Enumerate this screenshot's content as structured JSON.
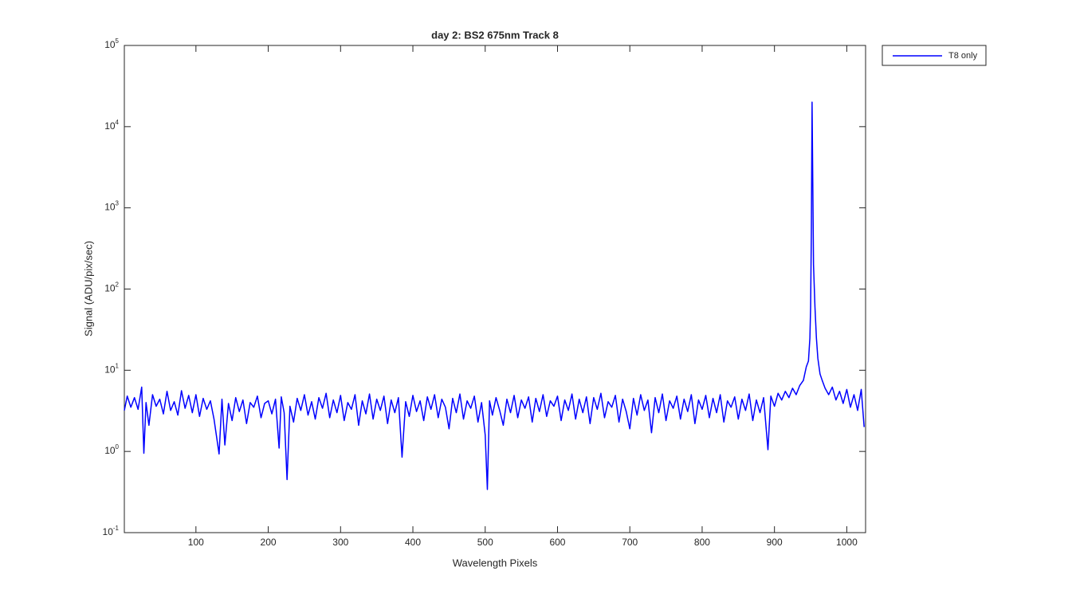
{
  "chart_data": {
    "type": "line",
    "title": "day 2: BS2  675nm  Track 8",
    "xlabel": "Wavelength Pixels",
    "ylabel": "Signal (ADU/pix/sec)",
    "yscale": "log",
    "legend": "outside-top-right",
    "xlim": [
      1,
      1026
    ],
    "ylim": [
      0.1,
      100000
    ],
    "xticks": [
      100,
      200,
      300,
      400,
      500,
      600,
      700,
      800,
      900,
      1000
    ],
    "yticks": [
      {
        "value": 0.1,
        "label": "10",
        "exponent": "-1"
      },
      {
        "value": 1,
        "label": "10",
        "exponent": "0"
      },
      {
        "value": 10,
        "label": "10",
        "exponent": "1"
      },
      {
        "value": 100,
        "label": "10",
        "exponent": "2"
      },
      {
        "value": 1000,
        "label": "10",
        "exponent": "3"
      },
      {
        "value": 10000,
        "label": "10",
        "exponent": "4"
      },
      {
        "value": 100000,
        "label": "10",
        "exponent": "5"
      }
    ],
    "series": [
      {
        "name": "T8 only",
        "color": "#0000ff",
        "x": [
          1,
          5,
          10,
          15,
          20,
          25,
          28,
          31,
          35,
          40,
          45,
          50,
          55,
          60,
          65,
          70,
          75,
          80,
          85,
          90,
          95,
          100,
          105,
          110,
          115,
          120,
          125,
          132,
          136,
          140,
          145,
          150,
          155,
          160,
          165,
          170,
          175,
          180,
          185,
          190,
          195,
          200,
          205,
          210,
          215,
          218,
          222,
          226,
          230,
          235,
          240,
          245,
          250,
          255,
          260,
          265,
          270,
          275,
          280,
          285,
          290,
          295,
          300,
          305,
          310,
          315,
          320,
          325,
          330,
          335,
          340,
          345,
          350,
          355,
          360,
          365,
          370,
          375,
          380,
          385,
          390,
          395,
          400,
          405,
          410,
          415,
          420,
          425,
          430,
          435,
          440,
          445,
          450,
          455,
          460,
          465,
          470,
          475,
          480,
          485,
          490,
          495,
          500,
          503,
          506,
          510,
          515,
          520,
          525,
          530,
          535,
          540,
          545,
          550,
          555,
          560,
          565,
          570,
          575,
          580,
          585,
          590,
          595,
          600,
          605,
          610,
          615,
          620,
          625,
          630,
          635,
          640,
          645,
          650,
          655,
          660,
          665,
          670,
          675,
          680,
          685,
          690,
          695,
          700,
          705,
          710,
          715,
          720,
          725,
          730,
          735,
          740,
          745,
          750,
          755,
          760,
          765,
          770,
          775,
          780,
          785,
          790,
          795,
          800,
          805,
          810,
          815,
          820,
          825,
          830,
          835,
          840,
          845,
          850,
          855,
          860,
          865,
          870,
          875,
          880,
          885,
          891,
          895,
          900,
          905,
          910,
          915,
          920,
          925,
          930,
          935,
          940,
          944,
          947,
          949,
          950,
          951,
          952,
          953,
          954,
          956,
          958,
          960,
          963,
          966,
          970,
          975,
          980,
          985,
          990,
          995,
          1000,
          1005,
          1010,
          1015,
          1020,
          1024
        ],
        "values": [
          3.2,
          4.8,
          3.5,
          4.6,
          3.3,
          6.2,
          0.95,
          4.0,
          2.1,
          5.0,
          3.6,
          4.4,
          2.9,
          5.5,
          3.2,
          4.1,
          2.8,
          5.6,
          3.4,
          4.9,
          3.0,
          5.0,
          2.7,
          4.5,
          3.3,
          4.2,
          2.5,
          0.93,
          4.4,
          1.2,
          3.9,
          2.4,
          4.6,
          3.1,
          4.3,
          2.2,
          4.0,
          3.5,
          4.8,
          2.6,
          3.9,
          4.2,
          2.9,
          4.4,
          1.1,
          4.7,
          3.0,
          0.45,
          3.6,
          2.3,
          4.5,
          3.2,
          5.0,
          2.8,
          4.1,
          2.5,
          4.6,
          3.4,
          5.2,
          2.6,
          4.3,
          3.0,
          4.9,
          2.4,
          4.0,
          3.3,
          5.0,
          2.1,
          4.2,
          2.9,
          5.1,
          2.5,
          4.4,
          3.2,
          4.8,
          2.2,
          4.3,
          3.0,
          4.6,
          0.85,
          4.1,
          2.7,
          4.9,
          3.1,
          4.2,
          2.4,
          4.7,
          3.3,
          5.0,
          2.6,
          4.4,
          3.5,
          1.9,
          4.5,
          3.0,
          5.1,
          2.5,
          4.2,
          3.4,
          4.8,
          2.3,
          4.0,
          1.6,
          0.34,
          4.2,
          2.8,
          4.6,
          3.2,
          2.1,
          4.4,
          3.0,
          4.9,
          2.6,
          4.3,
          3.4,
          4.7,
          2.3,
          4.5,
          3.1,
          5.0,
          2.7,
          4.2,
          3.6,
          4.8,
          2.4,
          4.3,
          3.2,
          5.1,
          2.5,
          4.4,
          3.0,
          4.7,
          2.2,
          4.6,
          3.3,
          5.2,
          2.6,
          4.1,
          3.5,
          4.9,
          2.3,
          4.4,
          3.1,
          1.9,
          4.5,
          2.8,
          5.0,
          3.2,
          4.3,
          1.7,
          4.6,
          3.0,
          5.1,
          2.4,
          4.2,
          3.4,
          4.8,
          2.5,
          4.4,
          3.1,
          5.0,
          2.2,
          4.3,
          3.3,
          4.9,
          2.6,
          4.5,
          3.0,
          5.0,
          2.3,
          4.2,
          3.5,
          4.7,
          2.5,
          4.4,
          3.2,
          5.1,
          2.4,
          4.3,
          3.0,
          4.6,
          1.05,
          4.8,
          3.6,
          5.2,
          4.3,
          5.5,
          4.6,
          6.0,
          5.0,
          6.5,
          7.5,
          11,
          13,
          25,
          60,
          500,
          20000,
          2000,
          200,
          60,
          25,
          14,
          9,
          7.5,
          6.0,
          5.0,
          6.2,
          4.3,
          5.5,
          3.9,
          5.8,
          3.5,
          5.0,
          3.2,
          5.8,
          2.0
        ]
      }
    ]
  }
}
